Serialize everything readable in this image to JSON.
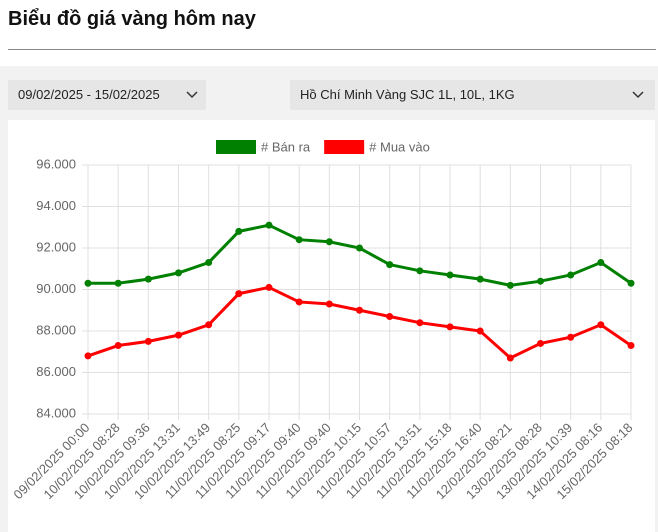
{
  "header": {
    "title": "Biểu đồ giá vàng hôm nay"
  },
  "filters": {
    "date_range": "09/02/2025 - 15/02/2025",
    "product": "Hồ Chí Minh Vàng SJC 1L, 10L, 1KG"
  },
  "chart_data": {
    "type": "line",
    "categories": [
      "09/02/2025 00:00",
      "10/02/2025 08:28",
      "10/02/2025 09:36",
      "10/02/2025 13:31",
      "10/02/2025 13:49",
      "11/02/2025 08:25",
      "11/02/2025 09:17",
      "11/02/2025 09:40",
      "11/02/2025 09:40",
      "11/02/2025 10:15",
      "11/02/2025 10:57",
      "11/02/2025 13:51",
      "11/02/2025 15:18",
      "11/02/2025 16:40",
      "12/02/2025 08:21",
      "13/02/2025 08:28",
      "13/02/2025 10:39",
      "14/02/2025 08:16",
      "15/02/2025 08:18"
    ],
    "series": [
      {
        "name": "# Bán ra",
        "color": "#008000",
        "values": [
          90300,
          90300,
          90500,
          90800,
          91300,
          92800,
          93100,
          92400,
          92300,
          92000,
          91200,
          90900,
          90700,
          90500,
          90200,
          90400,
          90700,
          91300,
          90300
        ]
      },
      {
        "name": "# Mua vào",
        "color": "#ff0000",
        "values": [
          86800,
          87300,
          87500,
          87800,
          88300,
          89800,
          90100,
          89400,
          89300,
          89000,
          88700,
          88400,
          88200,
          88000,
          86700,
          87400,
          87700,
          88300,
          87300
        ]
      }
    ],
    "ylim": [
      84000,
      96000
    ],
    "yticks": [
      {
        "value": 84000,
        "label": "84.000"
      },
      {
        "value": 86000,
        "label": "86.000"
      },
      {
        "value": 88000,
        "label": "88.000"
      },
      {
        "value": 90000,
        "label": "90.000"
      },
      {
        "value": 92000,
        "label": "92.000"
      },
      {
        "value": 94000,
        "label": "94.000"
      },
      {
        "value": 96000,
        "label": "96.000"
      }
    ],
    "grid": true
  }
}
